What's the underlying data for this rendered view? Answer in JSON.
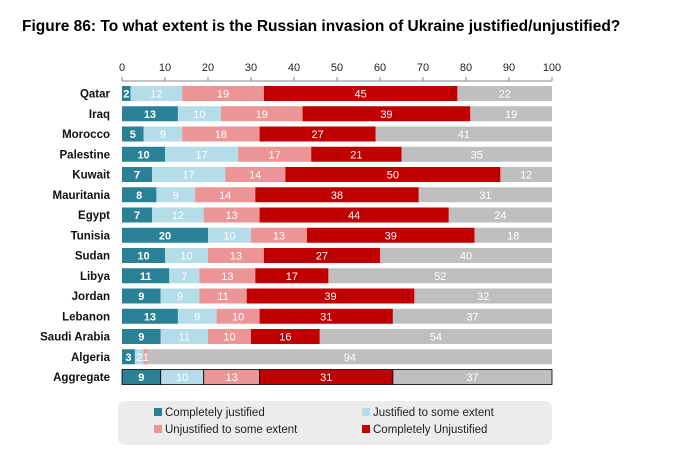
{
  "title": "Figure 86: To what extent is the Russian invasion of Ukraine justified/unjustified?",
  "chart_data": {
    "type": "bar",
    "orientation": "horizontal",
    "stacked": true,
    "title": "Figure 86: To what extent is the Russian invasion of Ukraine justified/unjustified?",
    "xlim": [
      0,
      100
    ],
    "xticks": [
      0,
      10,
      20,
      30,
      40,
      50,
      60,
      70,
      80,
      90,
      100
    ],
    "x_axis_position": "top",
    "grid": false,
    "legend_position": "bottom",
    "categories": [
      "Qatar",
      "Iraq",
      "Morocco",
      "Palestine",
      "Kuwait",
      "Mauritania",
      "Egypt",
      "Tunisia",
      "Sudan",
      "Libya",
      "Jordan",
      "Lebanon",
      "Saudi Arabia",
      "Algeria",
      "Aggregate"
    ],
    "series": [
      {
        "name": "Completely justified",
        "color": "#2a8196",
        "values": [
          2,
          13,
          5,
          10,
          7,
          8,
          7,
          20,
          10,
          11,
          9,
          13,
          9,
          3,
          9
        ]
      },
      {
        "name": "Justified to some extent",
        "color": "#b4dde9",
        "values": [
          12,
          10,
          9,
          17,
          17,
          9,
          12,
          10,
          10,
          7,
          9,
          9,
          11,
          2,
          10
        ]
      },
      {
        "name": "Unjustified to some extent",
        "color": "#ec9596",
        "values": [
          19,
          19,
          18,
          17,
          14,
          14,
          13,
          13,
          13,
          13,
          11,
          10,
          10,
          1,
          13
        ]
      },
      {
        "name": "Completely Unjustified",
        "color": "#c00000",
        "values": [
          45,
          39,
          27,
          21,
          50,
          38,
          44,
          39,
          27,
          17,
          39,
          31,
          16,
          0,
          31
        ]
      },
      {
        "name": "",
        "color": "#bfbfbf",
        "values": [
          22,
          19,
          41,
          35,
          12,
          31,
          24,
          18,
          40,
          52,
          32,
          37,
          54,
          94,
          37
        ]
      }
    ]
  },
  "legend": {
    "items": [
      {
        "label": "Completely justified",
        "color": "#2a8196"
      },
      {
        "label": "Justified to some extent",
        "color": "#b4dde9"
      },
      {
        "label": "Unjustified to some extent",
        "color": "#ec9596"
      },
      {
        "label": "Completely Unjustified",
        "color": "#c00000"
      }
    ]
  }
}
